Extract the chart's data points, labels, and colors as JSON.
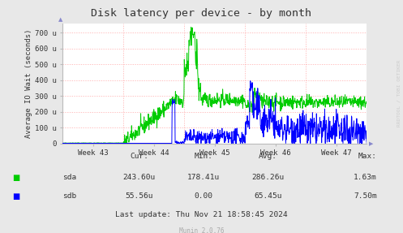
{
  "title": "Disk latency per device - by month",
  "ylabel": "Average IO Wait (seconds)",
  "bg_color": "#e8e8e8",
  "plot_bg_color": "#ffffff",
  "grid_color": "#ffaaaa",
  "sda_color": "#00cc00",
  "sdb_color": "#0000ff",
  "watermark": "RRDTOOL / TOBI OETIKER",
  "munin_version": "Munin 2.0.76",
  "y_ticks": [
    0,
    100,
    200,
    300,
    400,
    500,
    600,
    700
  ],
  "y_tick_labels": [
    "0",
    "100 u",
    "200 u",
    "300 u",
    "400 u",
    "500 u",
    "600 u",
    "700 u"
  ],
  "ylim": [
    0,
    760
  ],
  "x_tick_labels": [
    "Week 43",
    "Week 44",
    "Week 45",
    "Week 46",
    "Week 47"
  ],
  "legend": {
    "sda_cur": "243.60u",
    "sda_min": "178.41u",
    "sda_avg": "286.26u",
    "sda_max": "1.63m",
    "sdb_cur": "55.56u",
    "sdb_min": "0.00",
    "sdb_avg": "65.45u",
    "sdb_max": "7.50m"
  },
  "last_update": "Last update: Thu Nov 21 18:58:45 2024"
}
